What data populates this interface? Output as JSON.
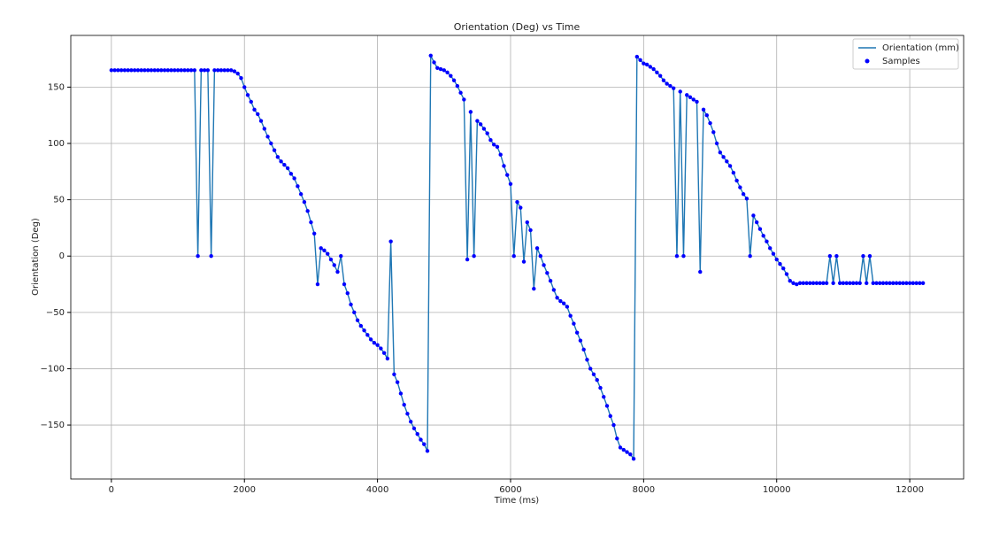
{
  "chart_data": {
    "type": "line",
    "title": "Orientation (Deg) vs Time",
    "xlabel": "Time (ms)",
    "ylabel": "Orientation (Deg)",
    "x": [
      0,
      50,
      100,
      150,
      200,
      250,
      300,
      350,
      400,
      450,
      500,
      550,
      600,
      650,
      700,
      750,
      800,
      850,
      900,
      950,
      1000,
      1050,
      1100,
      1150,
      1200,
      1250,
      1300,
      1350,
      1400,
      1450,
      1500,
      1550,
      1600,
      1650,
      1700,
      1750,
      1800,
      1850,
      1900,
      1950,
      2000,
      2050,
      2100,
      2150,
      2200,
      2250,
      2300,
      2350,
      2400,
      2450,
      2500,
      2550,
      2600,
      2650,
      2700,
      2750,
      2800,
      2850,
      2900,
      2950,
      3000,
      3050,
      3100,
      3150,
      3200,
      3250,
      3300,
      3350,
      3400,
      3450,
      3500,
      3550,
      3600,
      3650,
      3700,
      3750,
      3800,
      3850,
      3900,
      3950,
      4000,
      4050,
      4100,
      4150,
      4200,
      4250,
      4300,
      4350,
      4400,
      4450,
      4500,
      4550,
      4600,
      4650,
      4700,
      4750,
      4800,
      4850,
      4900,
      4950,
      5000,
      5050,
      5100,
      5150,
      5200,
      5250,
      5300,
      5350,
      5400,
      5450,
      5500,
      5550,
      5600,
      5650,
      5700,
      5750,
      5800,
      5850,
      5900,
      5950,
      6000,
      6050,
      6100,
      6150,
      6200,
      6250,
      6300,
      6350,
      6400,
      6450,
      6500,
      6550,
      6600,
      6650,
      6700,
      6750,
      6800,
      6850,
      6900,
      6950,
      7000,
      7050,
      7100,
      7150,
      7200,
      7250,
      7300,
      7350,
      7400,
      7450,
      7500,
      7550,
      7600,
      7650,
      7700,
      7750,
      7800,
      7850,
      7900,
      7950,
      8000,
      8050,
      8100,
      8150,
      8200,
      8250,
      8300,
      8350,
      8400,
      8450,
      8500,
      8550,
      8600,
      8650,
      8700,
      8750,
      8800,
      8850,
      8900,
      8950,
      9000,
      9050,
      9100,
      9150,
      9200,
      9250,
      9300,
      9350,
      9400,
      9450,
      9500,
      9550,
      9600,
      9650,
      9700,
      9750,
      9800,
      9850,
      9900,
      9950,
      10000,
      10050,
      10100,
      10150,
      10200,
      10250,
      10300,
      10350,
      10400,
      10450,
      10500,
      10550,
      10600,
      10650,
      10700,
      10750,
      10800,
      10850,
      10900,
      10950,
      11000,
      11050,
      11100,
      11150,
      11200,
      11250,
      11300,
      11350,
      11400,
      11450,
      11500,
      11550,
      11600,
      11650,
      11700,
      11750,
      11800,
      11850,
      11900,
      11950,
      12000,
      12050,
      12100,
      12150,
      12200
    ],
    "values": [
      165,
      165,
      165,
      165,
      165,
      165,
      165,
      165,
      165,
      165,
      165,
      165,
      165,
      165,
      165,
      165,
      165,
      165,
      165,
      165,
      165,
      165,
      165,
      165,
      165,
      165,
      0,
      165,
      165,
      165,
      0,
      165,
      165,
      165,
      165,
      165,
      165,
      164,
      162,
      158,
      150,
      143,
      137,
      130,
      126,
      120,
      113,
      106,
      100,
      94,
      88,
      84,
      81,
      78,
      73,
      69,
      62,
      55,
      48,
      40,
      30,
      20,
      -25,
      7,
      5,
      2,
      -3,
      -8,
      -14,
      0,
      -25,
      -33,
      -43,
      -50,
      -57,
      -62,
      -66,
      -70,
      -74,
      -77,
      -79,
      -82,
      -86,
      -91,
      13,
      -105,
      -112,
      -122,
      -132,
      -140,
      -147,
      -153,
      -158,
      -163,
      -167,
      -173,
      178,
      172,
      167,
      166,
      165,
      163,
      160,
      156,
      151,
      145,
      139,
      -3,
      128,
      0,
      120,
      117,
      113,
      109,
      103,
      99,
      97,
      90,
      80,
      72,
      64,
      0,
      48,
      43,
      -5,
      30,
      23,
      -29,
      7,
      0,
      -8,
      -15,
      -22,
      -30,
      -37,
      -40,
      -42,
      -45,
      -53,
      -60,
      -68,
      -75,
      -83,
      -92,
      -100,
      -105,
      -110,
      -117,
      -125,
      -133,
      -142,
      -150,
      -162,
      -170,
      -172,
      -174,
      -176,
      -180,
      177,
      174,
      171,
      170,
      168,
      166,
      163,
      160,
      156,
      153,
      151,
      149,
      0,
      146,
      0,
      143,
      141,
      139,
      137,
      -14,
      130,
      125,
      118,
      110,
      100,
      92,
      88,
      84,
      80,
      74,
      67,
      61,
      55,
      51,
      0,
      36,
      30,
      24,
      18,
      13,
      7,
      2,
      -3,
      -7,
      -11,
      -16,
      -22,
      -24,
      -25,
      -24,
      -24,
      -24,
      -24,
      -24,
      -24,
      -24,
      -24,
      -24,
      0,
      -24,
      0,
      -24,
      -24,
      -24,
      -24,
      -24,
      -24,
      -24,
      0,
      -24,
      0,
      -24,
      -24,
      -24,
      -24,
      -24,
      -24,
      -24,
      -24,
      -24,
      -24,
      -24,
      -24,
      -24,
      -24,
      -24,
      -24
    ],
    "series": [
      {
        "name": "Orientation (mm)",
        "color": "#1f77b4",
        "marker": "line"
      },
      {
        "name": "Samples",
        "color": "#0000ff",
        "marker": "dot"
      }
    ],
    "xlim": [
      -610,
      12810
    ],
    "ylim": [
      -197.9,
      195.9
    ],
    "xticks": [
      0,
      2000,
      4000,
      6000,
      8000,
      10000,
      12000
    ],
    "yticks": [
      {
        "value": -150,
        "label": "−150"
      },
      {
        "value": -100,
        "label": "−100"
      },
      {
        "value": -50,
        "label": "−50"
      },
      0,
      50,
      100,
      150
    ],
    "grid": true,
    "legend": "upper right"
  }
}
